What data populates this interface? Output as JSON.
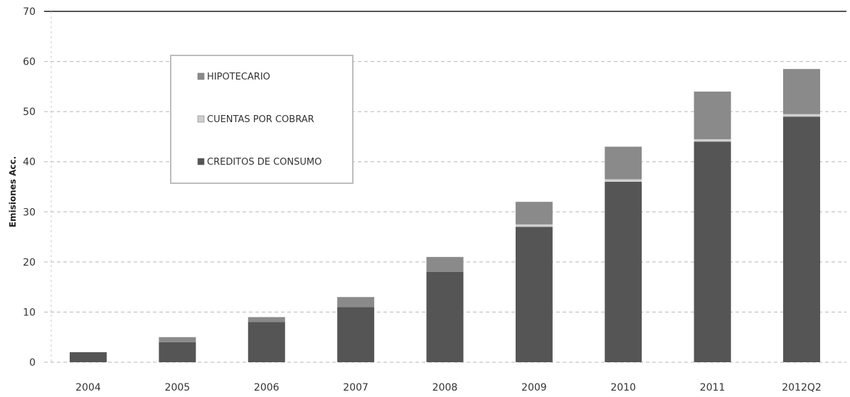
{
  "chart_data": {
    "type": "bar",
    "stacked": true,
    "title": "",
    "xlabel": "",
    "ylabel": "Emisiones Acc.",
    "ylim": [
      0,
      70
    ],
    "yticks": [
      0,
      10,
      20,
      30,
      40,
      50,
      60,
      70
    ],
    "grid": "horizontal dashed",
    "legend_position": "top-left",
    "categories": [
      "2004",
      "2005",
      "2006",
      "2007",
      "2008",
      "2009",
      "2010",
      "2011",
      "2012Q2"
    ],
    "series": [
      {
        "name": "CREDITOS DE CONSUMO",
        "color": "#555555",
        "values": [
          2,
          4,
          8,
          11,
          18,
          27,
          36,
          44,
          49
        ]
      },
      {
        "name": "CUENTAS POR COBRAR",
        "color": "#cfcfcf",
        "values": [
          0,
          0,
          0,
          0,
          0,
          0.5,
          0.5,
          0.5,
          0.5
        ]
      },
      {
        "name": "HIPOTECARIO",
        "color": "#8a8a8a",
        "values": [
          0,
          1,
          1,
          2,
          3,
          4.5,
          6.5,
          9.5,
          9
        ]
      }
    ]
  }
}
